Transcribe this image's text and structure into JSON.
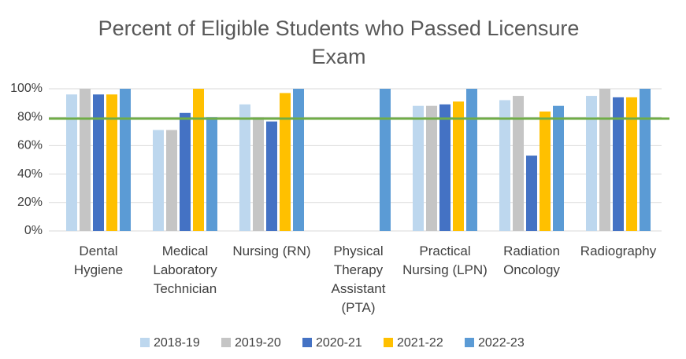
{
  "chart_data": {
    "type": "bar",
    "title": "Percent of Eligible Students who Passed Licensure Exam",
    "categories": [
      "Dental Hygiene",
      "Medical Laboratory Technician",
      "Nursing (RN)",
      "Physical Therapy Assistant (PTA)",
      "Practical Nursing (LPN)",
      "Radiation Oncology",
      "Radiography"
    ],
    "series": [
      {
        "name": "2018-19",
        "color": "#bdd7ee",
        "values": [
          96,
          71,
          89,
          null,
          88,
          92,
          95
        ]
      },
      {
        "name": "2019-20",
        "color": "#c5c5c5",
        "values": [
          100,
          71,
          80,
          null,
          88,
          95,
          100
        ]
      },
      {
        "name": "2020-21",
        "color": "#4472c4",
        "values": [
          96,
          83,
          77,
          null,
          89,
          53,
          94
        ]
      },
      {
        "name": "2021-22",
        "color": "#ffc000",
        "values": [
          96,
          100,
          97,
          null,
          91,
          84,
          94
        ]
      },
      {
        "name": "2022-23",
        "color": "#5b9bd5",
        "values": [
          100,
          80,
          100,
          100,
          100,
          88,
          100
        ]
      }
    ],
    "reference_line": {
      "value": 79,
      "color": "#70ad47"
    },
    "ylim": [
      0,
      100
    ],
    "yticks": [
      {
        "value": 0,
        "label": "0%"
      },
      {
        "value": 20,
        "label": "20%"
      },
      {
        "value": 40,
        "label": "40%"
      },
      {
        "value": 60,
        "label": "60%"
      },
      {
        "value": 80,
        "label": "80%"
      },
      {
        "value": 100,
        "label": "100%"
      }
    ],
    "grid": true,
    "legend": "bottom"
  }
}
